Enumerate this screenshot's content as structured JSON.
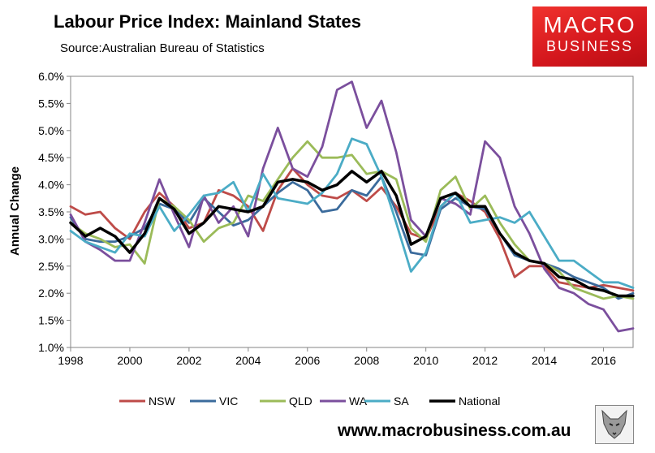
{
  "header": {
    "title": "Labour Price Index: Mainland States",
    "subtitle": "Source:Australian Bureau of Statistics"
  },
  "logo": {
    "line1": "MACRO",
    "line2": "BUSINESS",
    "color": "#d9191f"
  },
  "footer": {
    "website": "www.macrobusiness.com.au"
  },
  "chart_data": {
    "type": "line",
    "title": "Labour Price Index: Mainland States",
    "xlabel": "",
    "ylabel": "Annual Change",
    "xlim": [
      1998,
      2017
    ],
    "ylim": [
      1.0,
      6.0
    ],
    "x_ticks": [
      1998,
      2000,
      2002,
      2004,
      2006,
      2008,
      2010,
      2012,
      2014,
      2016
    ],
    "x_tick_labels": [
      "1998",
      "2000",
      "2002",
      "2004",
      "2006",
      "2008",
      "2010",
      "2012",
      "2014",
      "2016"
    ],
    "y_ticks": [
      1.0,
      1.5,
      2.0,
      2.5,
      3.0,
      3.5,
      4.0,
      4.5,
      5.0,
      5.5,
      6.0
    ],
    "y_tick_labels": [
      "1.0%",
      "1.5%",
      "2.0%",
      "2.5%",
      "3.0%",
      "3.5%",
      "4.0%",
      "4.5%",
      "5.0%",
      "5.5%",
      "6.0%"
    ],
    "legend_position": "bottom",
    "series": [
      {
        "name": "NSW",
        "color": "#be4b48",
        "points": [
          [
            1998.0,
            3.6
          ],
          [
            1998.5,
            3.45
          ],
          [
            1999.0,
            3.5
          ],
          [
            1999.5,
            3.2
          ],
          [
            2000.0,
            3.0
          ],
          [
            2000.5,
            3.5
          ],
          [
            2001.0,
            3.85
          ],
          [
            2001.5,
            3.6
          ],
          [
            2002.0,
            3.2
          ],
          [
            2002.5,
            3.3
          ],
          [
            2003.0,
            3.9
          ],
          [
            2003.5,
            3.8
          ],
          [
            2004.0,
            3.6
          ],
          [
            2004.5,
            3.15
          ],
          [
            2005.0,
            3.9
          ],
          [
            2005.5,
            4.3
          ],
          [
            2006.0,
            4.0
          ],
          [
            2006.5,
            3.8
          ],
          [
            2007.0,
            3.75
          ],
          [
            2007.5,
            3.9
          ],
          [
            2008.0,
            3.7
          ],
          [
            2008.5,
            3.95
          ],
          [
            2009.0,
            3.6
          ],
          [
            2009.5,
            3.1
          ],
          [
            2010.0,
            3.0
          ],
          [
            2010.5,
            3.6
          ],
          [
            2011.0,
            3.85
          ],
          [
            2011.5,
            3.7
          ],
          [
            2012.0,
            3.5
          ],
          [
            2012.5,
            3.0
          ],
          [
            2013.0,
            2.3
          ],
          [
            2013.5,
            2.5
          ],
          [
            2014.0,
            2.5
          ],
          [
            2014.5,
            2.2
          ],
          [
            2015.0,
            2.15
          ],
          [
            2015.5,
            2.1
          ],
          [
            2016.0,
            2.15
          ],
          [
            2016.5,
            2.1
          ],
          [
            2017.0,
            2.05
          ]
        ]
      },
      {
        "name": "VIC",
        "color": "#3b6b9c",
        "points": [
          [
            1998.0,
            3.4
          ],
          [
            1998.5,
            3.0
          ],
          [
            1999.0,
            2.95
          ],
          [
            1999.5,
            2.95
          ],
          [
            2000.0,
            3.05
          ],
          [
            2000.5,
            3.2
          ],
          [
            2001.0,
            3.65
          ],
          [
            2001.5,
            3.55
          ],
          [
            2002.0,
            3.3
          ],
          [
            2002.5,
            3.75
          ],
          [
            2003.0,
            3.5
          ],
          [
            2003.5,
            3.25
          ],
          [
            2004.0,
            3.35
          ],
          [
            2004.5,
            3.6
          ],
          [
            2005.0,
            3.85
          ],
          [
            2005.5,
            4.05
          ],
          [
            2006.0,
            3.9
          ],
          [
            2006.5,
            3.5
          ],
          [
            2007.0,
            3.55
          ],
          [
            2007.5,
            3.9
          ],
          [
            2008.0,
            3.8
          ],
          [
            2008.5,
            4.15
          ],
          [
            2009.0,
            3.5
          ],
          [
            2009.5,
            2.75
          ],
          [
            2010.0,
            2.7
          ],
          [
            2010.5,
            3.55
          ],
          [
            2011.0,
            3.75
          ],
          [
            2011.5,
            3.6
          ],
          [
            2012.0,
            3.55
          ],
          [
            2012.5,
            3.1
          ],
          [
            2013.0,
            2.7
          ],
          [
            2013.5,
            2.6
          ],
          [
            2014.0,
            2.55
          ],
          [
            2014.5,
            2.45
          ],
          [
            2015.0,
            2.3
          ],
          [
            2015.5,
            2.2
          ],
          [
            2016.0,
            2.1
          ],
          [
            2016.5,
            1.9
          ],
          [
            2017.0,
            2.0
          ]
        ]
      },
      {
        "name": "QLD",
        "color": "#9bbb59",
        "points": [
          [
            1998.0,
            3.3
          ],
          [
            1998.5,
            3.1
          ],
          [
            1999.0,
            3.0
          ],
          [
            1999.5,
            2.85
          ],
          [
            2000.0,
            2.9
          ],
          [
            2000.5,
            2.55
          ],
          [
            2001.0,
            3.75
          ],
          [
            2001.5,
            3.6
          ],
          [
            2002.0,
            3.35
          ],
          [
            2002.5,
            2.95
          ],
          [
            2003.0,
            3.2
          ],
          [
            2003.5,
            3.3
          ],
          [
            2004.0,
            3.8
          ],
          [
            2004.5,
            3.7
          ],
          [
            2005.0,
            4.1
          ],
          [
            2005.5,
            4.5
          ],
          [
            2006.0,
            4.8
          ],
          [
            2006.5,
            4.5
          ],
          [
            2007.0,
            4.5
          ],
          [
            2007.5,
            4.55
          ],
          [
            2008.0,
            4.2
          ],
          [
            2008.5,
            4.25
          ],
          [
            2009.0,
            4.1
          ],
          [
            2009.5,
            3.2
          ],
          [
            2010.0,
            2.95
          ],
          [
            2010.5,
            3.9
          ],
          [
            2011.0,
            4.15
          ],
          [
            2011.5,
            3.55
          ],
          [
            2012.0,
            3.8
          ],
          [
            2012.5,
            3.3
          ],
          [
            2013.0,
            2.9
          ],
          [
            2013.5,
            2.6
          ],
          [
            2014.0,
            2.55
          ],
          [
            2014.5,
            2.4
          ],
          [
            2015.0,
            2.1
          ],
          [
            2015.5,
            2.0
          ],
          [
            2016.0,
            1.9
          ],
          [
            2016.5,
            1.95
          ],
          [
            2017.0,
            1.9
          ]
        ]
      },
      {
        "name": "WA",
        "color": "#7b4f9d",
        "points": [
          [
            1998.0,
            3.45
          ],
          [
            1998.5,
            2.95
          ],
          [
            1999.0,
            2.8
          ],
          [
            1999.5,
            2.6
          ],
          [
            2000.0,
            2.6
          ],
          [
            2000.5,
            3.3
          ],
          [
            2001.0,
            4.1
          ],
          [
            2001.5,
            3.45
          ],
          [
            2002.0,
            2.85
          ],
          [
            2002.5,
            3.8
          ],
          [
            2003.0,
            3.3
          ],
          [
            2003.5,
            3.6
          ],
          [
            2004.0,
            3.05
          ],
          [
            2004.5,
            4.3
          ],
          [
            2005.0,
            5.05
          ],
          [
            2005.5,
            4.3
          ],
          [
            2006.0,
            4.15
          ],
          [
            2006.5,
            4.7
          ],
          [
            2007.0,
            5.75
          ],
          [
            2007.5,
            5.9
          ],
          [
            2008.0,
            5.05
          ],
          [
            2008.5,
            5.55
          ],
          [
            2009.0,
            4.6
          ],
          [
            2009.5,
            3.35
          ],
          [
            2010.0,
            3.05
          ],
          [
            2010.5,
            3.75
          ],
          [
            2011.0,
            3.65
          ],
          [
            2011.5,
            3.45
          ],
          [
            2012.0,
            4.8
          ],
          [
            2012.5,
            4.5
          ],
          [
            2013.0,
            3.6
          ],
          [
            2013.5,
            3.1
          ],
          [
            2014.0,
            2.45
          ],
          [
            2014.5,
            2.1
          ],
          [
            2015.0,
            2.0
          ],
          [
            2015.5,
            1.8
          ],
          [
            2016.0,
            1.7
          ],
          [
            2016.5,
            1.3
          ],
          [
            2017.0,
            1.35
          ]
        ]
      },
      {
        "name": "SA",
        "color": "#4bacc6",
        "points": [
          [
            1998.0,
            3.15
          ],
          [
            1998.5,
            2.95
          ],
          [
            1999.0,
            2.85
          ],
          [
            1999.5,
            2.75
          ],
          [
            2000.0,
            3.1
          ],
          [
            2000.5,
            3.05
          ],
          [
            2001.0,
            3.6
          ],
          [
            2001.5,
            3.15
          ],
          [
            2002.0,
            3.45
          ],
          [
            2002.5,
            3.8
          ],
          [
            2003.0,
            3.85
          ],
          [
            2003.5,
            4.05
          ],
          [
            2004.0,
            3.5
          ],
          [
            2004.5,
            4.2
          ],
          [
            2005.0,
            3.75
          ],
          [
            2005.5,
            3.7
          ],
          [
            2006.0,
            3.65
          ],
          [
            2006.5,
            3.85
          ],
          [
            2007.0,
            4.2
          ],
          [
            2007.5,
            4.85
          ],
          [
            2008.0,
            4.75
          ],
          [
            2008.5,
            4.15
          ],
          [
            2009.0,
            3.3
          ],
          [
            2009.5,
            2.4
          ],
          [
            2010.0,
            2.75
          ],
          [
            2010.5,
            3.6
          ],
          [
            2011.0,
            3.85
          ],
          [
            2011.5,
            3.3
          ],
          [
            2012.0,
            3.35
          ],
          [
            2012.5,
            3.4
          ],
          [
            2013.0,
            3.3
          ],
          [
            2013.5,
            3.5
          ],
          [
            2014.0,
            3.05
          ],
          [
            2014.5,
            2.6
          ],
          [
            2015.0,
            2.6
          ],
          [
            2015.5,
            2.4
          ],
          [
            2016.0,
            2.2
          ],
          [
            2016.5,
            2.2
          ],
          [
            2017.0,
            2.1
          ]
        ]
      },
      {
        "name": "National",
        "color": "#000000",
        "points": [
          [
            1998.0,
            3.3
          ],
          [
            1998.5,
            3.05
          ],
          [
            1999.0,
            3.2
          ],
          [
            1999.5,
            3.05
          ],
          [
            2000.0,
            2.75
          ],
          [
            2000.5,
            3.1
          ],
          [
            2001.0,
            3.75
          ],
          [
            2001.5,
            3.55
          ],
          [
            2002.0,
            3.1
          ],
          [
            2002.5,
            3.3
          ],
          [
            2003.0,
            3.6
          ],
          [
            2003.5,
            3.55
          ],
          [
            2004.0,
            3.5
          ],
          [
            2004.5,
            3.6
          ],
          [
            2005.0,
            4.05
          ],
          [
            2005.5,
            4.1
          ],
          [
            2006.0,
            4.05
          ],
          [
            2006.5,
            3.9
          ],
          [
            2007.0,
            4.0
          ],
          [
            2007.5,
            4.25
          ],
          [
            2008.0,
            4.05
          ],
          [
            2008.5,
            4.25
          ],
          [
            2009.0,
            3.8
          ],
          [
            2009.5,
            2.9
          ],
          [
            2010.0,
            3.05
          ],
          [
            2010.5,
            3.75
          ],
          [
            2011.0,
            3.85
          ],
          [
            2011.5,
            3.6
          ],
          [
            2012.0,
            3.6
          ],
          [
            2012.5,
            3.1
          ],
          [
            2013.0,
            2.75
          ],
          [
            2013.5,
            2.6
          ],
          [
            2014.0,
            2.55
          ],
          [
            2014.5,
            2.3
          ],
          [
            2015.0,
            2.25
          ],
          [
            2015.5,
            2.1
          ],
          [
            2016.0,
            2.05
          ],
          [
            2016.5,
            1.95
          ],
          [
            2017.0,
            1.95
          ]
        ]
      }
    ]
  }
}
